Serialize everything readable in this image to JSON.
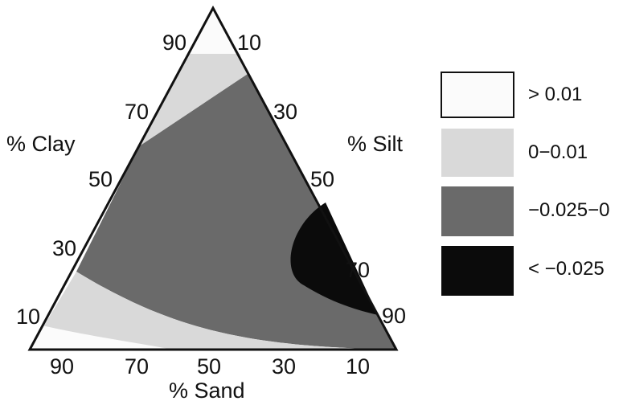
{
  "chart_data": {
    "type": "ternary-contour",
    "axes": {
      "clay": {
        "label": "% Clay",
        "ticks": [
          "90",
          "70",
          "50",
          "30",
          "10"
        ]
      },
      "silt": {
        "label": "% Silt",
        "ticks": [
          "10",
          "30",
          "50",
          "70",
          "90"
        ]
      },
      "sand": {
        "label": "% Sand",
        "ticks": [
          "90",
          "70",
          "50",
          "30",
          "10"
        ]
      }
    },
    "legend": {
      "position": "right",
      "items": [
        {
          "label": "> 0.01",
          "color": "#fbfbfb"
        },
        {
          "label": "0−0.01",
          "color": "#d9d9d9"
        },
        {
          "label": "−0.025−0",
          "color": "#6a6a6a"
        },
        {
          "label": "< −0.025",
          "color": "#0b0b0b"
        }
      ]
    },
    "regions": [
      {
        "class": "> 0.01",
        "description": "clay-rich apex corner",
        "approx_domain": "clay > ~80%"
      },
      {
        "class": "> 0.01",
        "description": "sliver along sand-rich base",
        "approx_domain": "clay < ~3%, sand > ~50%"
      },
      {
        "class": "0−0.01",
        "description": "band below clay apex",
        "approx_domain": "clay ~55-80%"
      },
      {
        "class": "0−0.01",
        "description": "band along base",
        "approx_domain": "clay ~3-20%"
      },
      {
        "class": "−0.025−0",
        "description": "central field",
        "approx_domain": "clay ~15-60%"
      },
      {
        "class": "< −0.025",
        "description": "silt-rich lobe on right edge",
        "approx_domain": "silt > ~55%, clay ~10-45%"
      }
    ]
  }
}
